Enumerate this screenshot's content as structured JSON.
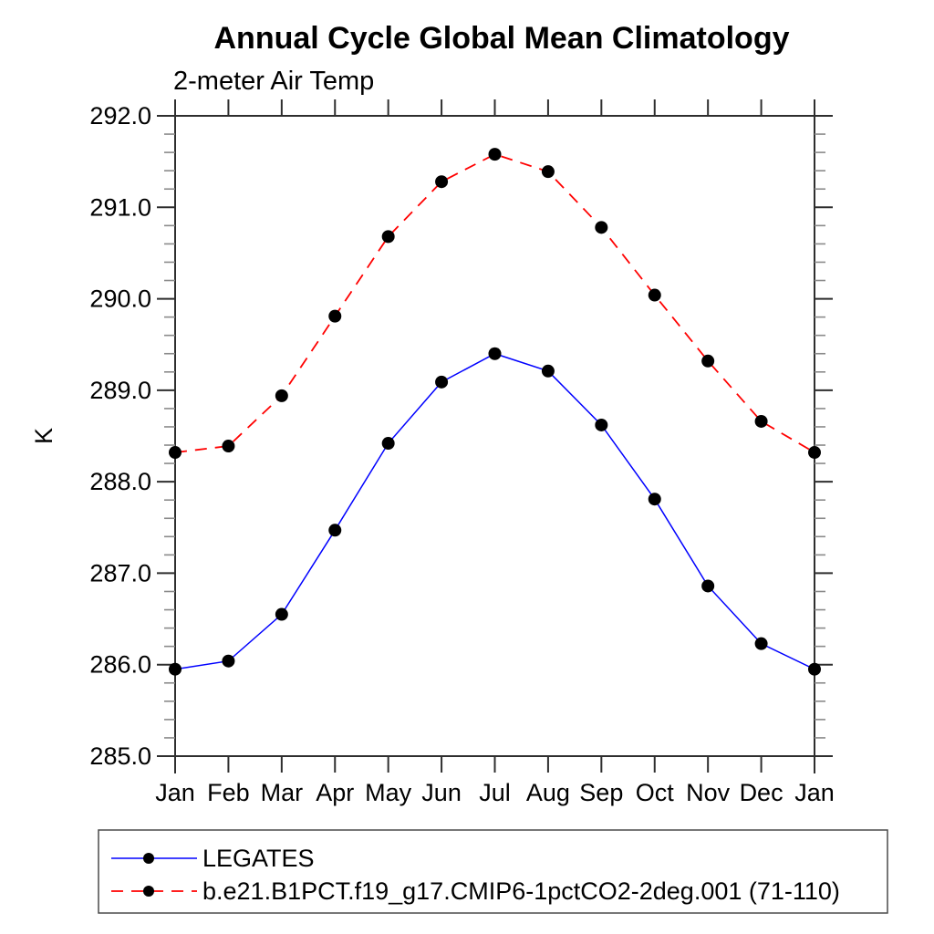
{
  "chart_data": {
    "type": "line",
    "title": "Annual Cycle Global Mean Climatology",
    "subtitle": "2-meter Air Temp",
    "ylabel": "K",
    "xlabel": "",
    "categories": [
      "Jan",
      "Feb",
      "Mar",
      "Apr",
      "May",
      "Jun",
      "Jul",
      "Aug",
      "Sep",
      "Oct",
      "Nov",
      "Dec",
      "Jan"
    ],
    "series": [
      {
        "name": "LEGATES",
        "color": "#0000ff",
        "line_style": "solid",
        "marker": "filled-circle",
        "marker_color": "#000000",
        "values": [
          285.95,
          286.04,
          286.55,
          287.47,
          288.42,
          289.09,
          289.4,
          289.21,
          288.62,
          287.81,
          286.86,
          286.23,
          285.95
        ]
      },
      {
        "name": "b.e21.B1PCT.f19_g17.CMIP6-1pctCO2-2deg.001 (71-110)",
        "color": "#ff0000",
        "line_style": "dashed",
        "marker": "filled-circle",
        "marker_color": "#000000",
        "values": [
          288.32,
          288.39,
          288.94,
          289.81,
          290.68,
          291.28,
          291.58,
          291.39,
          290.78,
          290.04,
          289.32,
          288.66,
          288.32
        ]
      }
    ],
    "ylim": [
      285.0,
      292.0
    ],
    "ytick_step": 1.0,
    "yminor_step": 0.2,
    "ytick_labels": [
      "285.0",
      "286.0",
      "287.0",
      "288.0",
      "289.0",
      "290.0",
      "291.0",
      "292.0"
    ],
    "grid": false,
    "legend_position": "bottom-left-box",
    "axis_color": "#2e2e2e",
    "minor_tick_color": "#8a8a8a"
  }
}
